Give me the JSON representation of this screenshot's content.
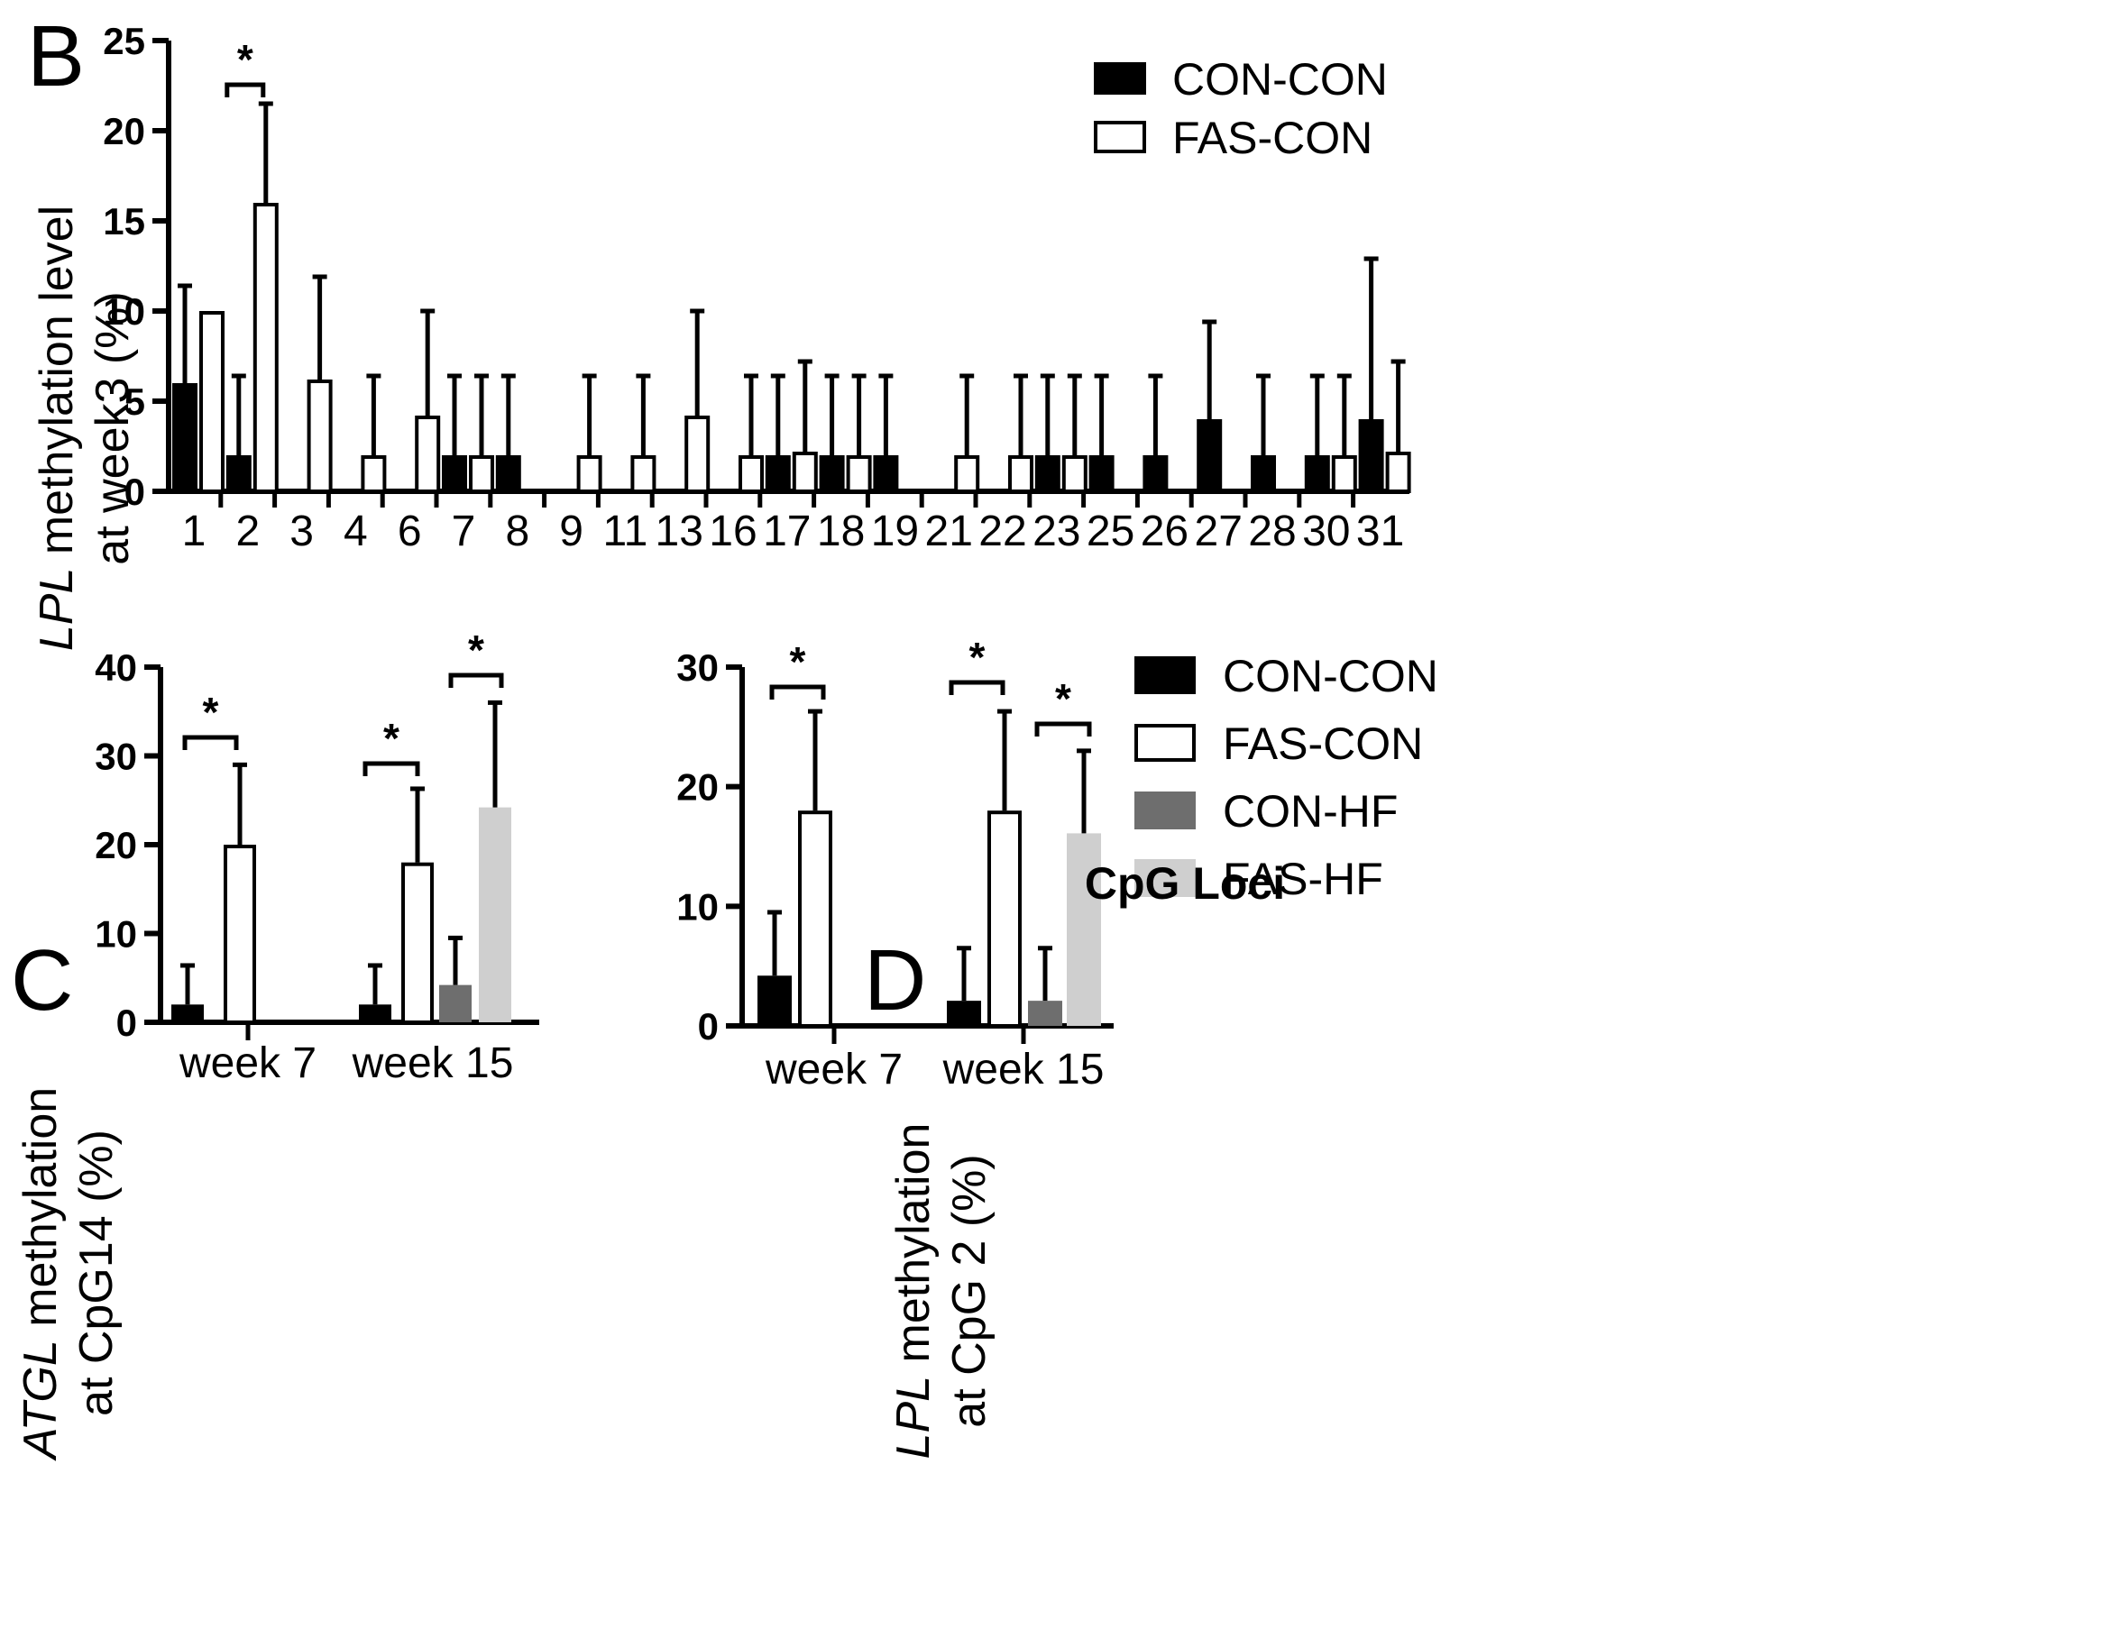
{
  "colors": {
    "CON-CON": "#000000",
    "FAS-CON": "#ffffff",
    "CON-HF": "#6e6e6e",
    "FAS-HF": "#cfcfcf"
  },
  "chart_data": [
    {
      "panel": "B",
      "type": "bar",
      "title": "",
      "xlabel": "CpG Loci",
      "ylabel_italic": "LPL",
      "ylabel_rest": " methylation level",
      "ylabel_line2": "at week3 (%)",
      "ylim": [
        0,
        25
      ],
      "yticks": [
        "0",
        "5",
        "10",
        "15",
        "20",
        "25"
      ],
      "categories": [
        "1",
        "2",
        "3",
        "4",
        "6",
        "7",
        "8",
        "9",
        "11",
        "13",
        "16",
        "17",
        "18",
        "19",
        "21",
        "22",
        "23",
        "25",
        "26",
        "27",
        "28",
        "30",
        "31"
      ],
      "series": [
        {
          "name": "CON-CON",
          "values": [
            6,
            2,
            0,
            0,
            0,
            2,
            2,
            0,
            0,
            0,
            0,
            2,
            2,
            2,
            0,
            0,
            2,
            2,
            2,
            4,
            2,
            2,
            4
          ],
          "errors": [
            5.4,
            4.4,
            0,
            0,
            0,
            4.4,
            4.4,
            0,
            0,
            0,
            0,
            4.4,
            4.4,
            4.4,
            0,
            0,
            4.4,
            4.4,
            4.4,
            5.4,
            4.4,
            4.4,
            8.9
          ]
        },
        {
          "name": "FAS-CON",
          "values": [
            10,
            16,
            6.2,
            2,
            4.2,
            2,
            0,
            2,
            2,
            4.2,
            2,
            2.2,
            2,
            0,
            2,
            2,
            2,
            0,
            0,
            0,
            0,
            2,
            2.2
          ],
          "errors": [
            0,
            5.5,
            5.7,
            4.4,
            5.8,
            4.4,
            0,
            4.4,
            4.4,
            5.8,
            4.4,
            5.0,
            4.4,
            0,
            4.4,
            4.4,
            4.4,
            0,
            0,
            0,
            0,
            4.4,
            5.0
          ]
        }
      ],
      "annotations": [
        {
          "text": "*",
          "category": "2"
        }
      ],
      "legend": [
        "CON-CON",
        "FAS-CON"
      ]
    },
    {
      "panel": "C",
      "type": "bar",
      "xlabel": "",
      "ylabel_italic": "ATGL",
      "ylabel_rest": " methylation",
      "ylabel_line2": "at CpG14 (%)",
      "ylim": [
        0,
        40
      ],
      "yticks": [
        "0",
        "10",
        "20",
        "30",
        "40"
      ],
      "categories": [
        "week 7",
        "week 15"
      ],
      "series": [
        {
          "name": "CON-CON",
          "values": [
            2,
            2
          ],
          "errors": [
            4.4,
            4.4
          ]
        },
        {
          "name": "FAS-CON",
          "values": [
            20,
            18
          ],
          "errors": [
            9,
            8.3
          ]
        },
        {
          "name": "CON-HF",
          "values": [
            null,
            4.2
          ],
          "errors": [
            null,
            5.3
          ]
        },
        {
          "name": "FAS-HF",
          "values": [
            null,
            24.2
          ],
          "errors": [
            null,
            11.8
          ]
        }
      ],
      "annotations": [
        {
          "text": "*",
          "category": "week 7",
          "compare": [
            "CON-CON",
            "FAS-CON"
          ]
        },
        {
          "text": "*",
          "category": "week 15",
          "compare": [
            "CON-CON",
            "FAS-CON"
          ]
        },
        {
          "text": "*",
          "category": "week 15",
          "compare": [
            "CON-HF",
            "FAS-HF"
          ]
        }
      ]
    },
    {
      "panel": "D",
      "type": "bar",
      "xlabel": "",
      "ylabel_italic": "LPL",
      "ylabel_rest": " methylation",
      "ylabel_line2": "at CpG 2 (%)",
      "ylim": [
        0,
        30
      ],
      "yticks": [
        "0",
        "10",
        "20",
        "30"
      ],
      "categories": [
        "week 7",
        "week 15"
      ],
      "series": [
        {
          "name": "CON-CON",
          "values": [
            4.2,
            2.1
          ],
          "errors": [
            5.3,
            4.4
          ]
        },
        {
          "name": "FAS-CON",
          "values": [
            18,
            18
          ],
          "errors": [
            8.3,
            8.3
          ]
        },
        {
          "name": "CON-HF",
          "values": [
            null,
            2.1
          ],
          "errors": [
            null,
            4.4
          ]
        },
        {
          "name": "FAS-HF",
          "values": [
            null,
            16.1
          ],
          "errors": [
            null,
            6.9
          ]
        }
      ],
      "annotations": [
        {
          "text": "*",
          "category": "week 7",
          "compare": [
            "CON-CON",
            "FAS-CON"
          ]
        },
        {
          "text": "*",
          "category": "week 15",
          "compare": [
            "CON-CON",
            "FAS-CON"
          ]
        },
        {
          "text": "*",
          "category": "week 15",
          "compare": [
            "CON-HF",
            "FAS-HF"
          ]
        }
      ],
      "legend": [
        "CON-CON",
        "FAS-CON",
        "CON-HF",
        "FAS-HF"
      ]
    }
  ]
}
